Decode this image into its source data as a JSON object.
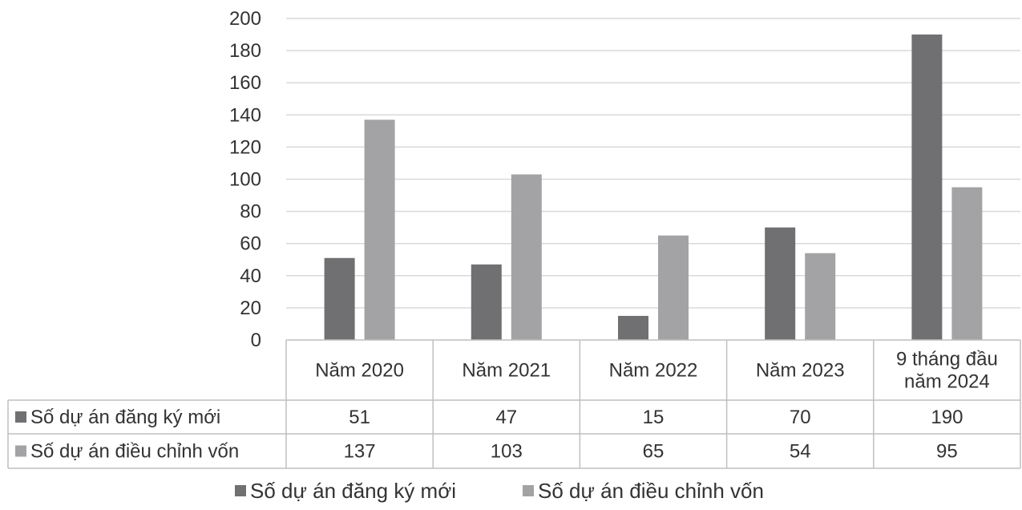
{
  "chart_data": {
    "type": "bar",
    "categories": [
      "Năm 2020",
      "Năm 2021",
      "Năm 2022",
      "Năm 2023",
      "9 tháng đầu năm 2024"
    ],
    "category_lines": [
      [
        "Năm 2020"
      ],
      [
        "Năm 2021"
      ],
      [
        "Năm 2022"
      ],
      [
        "Năm 2023"
      ],
      [
        "9 tháng đầu",
        "năm 2024"
      ]
    ],
    "series": [
      {
        "name": "Số dự án đăng ký mới",
        "values": [
          51,
          47,
          15,
          70,
          190
        ],
        "color": "#707072"
      },
      {
        "name": "Số dự án điều chỉnh vốn",
        "values": [
          137,
          103,
          65,
          54,
          95
        ],
        "color": "#a3a3a5"
      }
    ],
    "ylim": [
      0,
      200
    ],
    "yticks": [
      0,
      20,
      40,
      60,
      80,
      100,
      120,
      140,
      160,
      180,
      200
    ],
    "grid": true,
    "legend": "bottom",
    "data_table": true,
    "colors": {
      "grid": "#d9d9d9",
      "table_border": "#bfbfbf",
      "text": "#333333"
    }
  }
}
